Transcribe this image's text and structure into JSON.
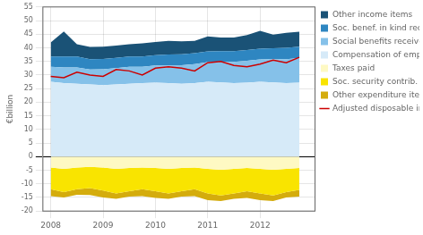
{
  "chart_data": {
    "type": "area",
    "stacked": true,
    "ylabel": "€billion",
    "x": [
      2008.0,
      2008.25,
      2008.5,
      2008.75,
      2009.0,
      2009.25,
      2009.5,
      2009.75,
      2010.0,
      2010.25,
      2010.5,
      2010.75,
      2011.0,
      2011.25,
      2011.5,
      2011.75,
      2012.0,
      2012.25,
      2012.5,
      2012.75
    ],
    "xlim": [
      2007.85,
      2013.05
    ],
    "xticks": [
      2008,
      2009,
      2010,
      2011,
      2012
    ],
    "ylim": [
      -20,
      55
    ],
    "yticks": [
      -20,
      -15,
      -10,
      -5,
      0,
      5,
      10,
      15,
      20,
      25,
      30,
      35,
      40,
      45,
      50,
      55
    ],
    "grid": true,
    "legend": "right",
    "series": [
      {
        "name": "Compensation of employees",
        "type": "area",
        "color": "#d6eaf8",
        "values": [
          27.5,
          27.0,
          26.8,
          26.5,
          26.3,
          26.5,
          26.8,
          27.0,
          27.2,
          27.0,
          26.8,
          27.0,
          27.5,
          27.3,
          27.0,
          27.2,
          27.5,
          27.3,
          27.0,
          27.2
        ]
      },
      {
        "name": "Social benefits received",
        "type": "area",
        "color": "#85c1e9",
        "values": [
          5.5,
          5.8,
          6.0,
          5.5,
          5.8,
          6.0,
          6.2,
          6.0,
          6.3,
          6.5,
          6.8,
          7.0,
          7.2,
          7.5,
          7.8,
          8.0,
          8.2,
          8.5,
          8.8,
          9.0
        ]
      },
      {
        "name": "Soc. benef. in kind received",
        "type": "area",
        "color": "#2e86c1",
        "values": [
          3.8,
          4.0,
          4.0,
          3.8,
          3.8,
          3.8,
          3.8,
          3.8,
          3.8,
          4.0,
          4.0,
          4.0,
          4.0,
          4.0,
          4.0,
          4.0,
          4.0,
          4.0,
          4.2,
          4.2
        ]
      },
      {
        "name": "Other income items",
        "type": "area",
        "color": "#1a5276",
        "values": [
          5.2,
          9.2,
          4.5,
          4.5,
          4.5,
          4.5,
          4.5,
          4.8,
          4.8,
          5.0,
          4.8,
          4.5,
          5.5,
          5.0,
          5.0,
          5.5,
          6.5,
          5.0,
          5.5,
          5.5
        ]
      },
      {
        "name": "Taxes paid",
        "type": "area",
        "color": "#fef9c3",
        "values": [
          -4.0,
          -4.5,
          -4.0,
          -3.8,
          -4.0,
          -4.5,
          -4.2,
          -4.0,
          -4.2,
          -4.5,
          -4.2,
          -4.0,
          -4.5,
          -4.8,
          -4.5,
          -4.2,
          -4.5,
          -4.8,
          -4.5,
          -4.2
        ]
      },
      {
        "name": "Soc. security contrib. paid",
        "type": "area",
        "color": "#f9e400",
        "values": [
          -8.0,
          -8.5,
          -8.0,
          -7.8,
          -8.5,
          -9.0,
          -8.5,
          -8.0,
          -8.5,
          -9.0,
          -8.5,
          -8.0,
          -9.0,
          -9.5,
          -9.0,
          -8.5,
          -9.0,
          -9.5,
          -8.5,
          -8.0
        ]
      },
      {
        "name": "Other expenditure items",
        "type": "area",
        "color": "#d4ac0d",
        "values": [
          -2.5,
          -2.0,
          -2.0,
          -2.5,
          -2.5,
          -2.0,
          -2.0,
          -2.5,
          -2.5,
          -2.0,
          -2.0,
          -2.5,
          -2.5,
          -2.0,
          -2.0,
          -2.5,
          -2.5,
          -2.0,
          -2.0,
          -2.5
        ]
      },
      {
        "name": "Adjusted disposable income",
        "type": "line",
        "color": "#cc0000",
        "values": [
          29.5,
          29.0,
          31.0,
          30.0,
          29.5,
          32.0,
          31.5,
          30.0,
          32.5,
          33.0,
          32.5,
          31.5,
          34.5,
          35.0,
          33.5,
          33.0,
          34.0,
          35.5,
          34.5,
          36.5
        ]
      }
    ]
  }
}
